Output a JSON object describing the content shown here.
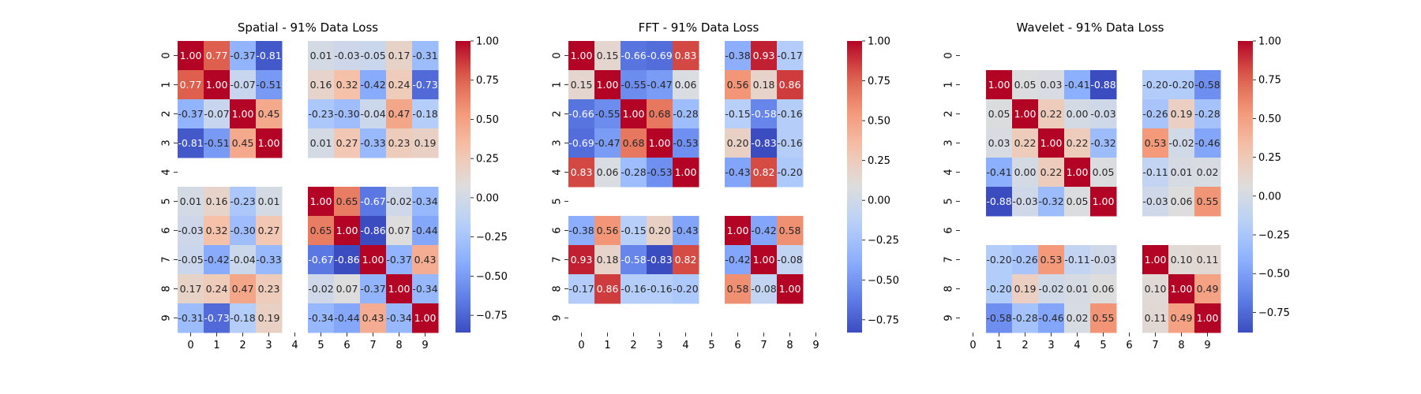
{
  "chart_data": [
    {
      "type": "heatmap",
      "title": "Spatial - 91% Data Loss",
      "x_ticks": [
        "0",
        "1",
        "2",
        "3",
        "4",
        "5",
        "6",
        "7",
        "8",
        "9"
      ],
      "y_ticks": [
        "0",
        "1",
        "2",
        "3",
        "4",
        "5",
        "6",
        "7",
        "8",
        "9"
      ],
      "colorbar": {
        "ticks": [
          1.0,
          0.75,
          0.5,
          0.25,
          0.0,
          -0.25,
          -0.5,
          -0.75
        ],
        "tick_labels": [
          "1.00",
          "0.75",
          "0.50",
          "0.25",
          "0.00",
          "−0.25",
          "−0.50",
          "−0.75"
        ],
        "range": [
          -0.86,
          1.0
        ]
      },
      "colormap": "coolwarm",
      "matrix": [
        [
          1.0,
          0.77,
          -0.37,
          -0.81,
          null,
          0.01,
          -0.03,
          -0.05,
          0.17,
          -0.31
        ],
        [
          0.77,
          1.0,
          -0.07,
          -0.51,
          null,
          0.16,
          0.32,
          -0.42,
          0.24,
          -0.73
        ],
        [
          -0.37,
          -0.07,
          1.0,
          0.45,
          null,
          -0.23,
          -0.3,
          -0.04,
          0.47,
          -0.18
        ],
        [
          -0.81,
          -0.51,
          0.45,
          1.0,
          null,
          0.01,
          0.27,
          -0.33,
          0.23,
          0.19
        ],
        [
          null,
          null,
          null,
          null,
          null,
          null,
          null,
          null,
          null,
          null
        ],
        [
          0.01,
          0.16,
          -0.23,
          0.01,
          null,
          1.0,
          0.65,
          -0.67,
          -0.02,
          -0.34
        ],
        [
          -0.03,
          0.32,
          -0.3,
          0.27,
          null,
          0.65,
          1.0,
          -0.86,
          0.07,
          -0.44
        ],
        [
          -0.05,
          -0.42,
          -0.04,
          -0.33,
          null,
          -0.67,
          -0.86,
          1.0,
          -0.37,
          0.43
        ],
        [
          0.17,
          0.24,
          0.47,
          0.23,
          null,
          -0.02,
          0.07,
          -0.37,
          1.0,
          -0.34
        ],
        [
          -0.31,
          -0.73,
          -0.18,
          0.19,
          null,
          -0.34,
          -0.44,
          0.43,
          -0.34,
          1.0
        ]
      ]
    },
    {
      "type": "heatmap",
      "title": "FFT - 91% Data Loss",
      "x_ticks": [
        "0",
        "1",
        "2",
        "3",
        "4",
        "5",
        "6",
        "7",
        "8",
        "9"
      ],
      "y_ticks": [
        "0",
        "1",
        "2",
        "3",
        "4",
        "5",
        "6",
        "7",
        "8",
        "9"
      ],
      "colorbar": {
        "ticks": [
          1.0,
          0.75,
          0.5,
          0.25,
          0.0,
          -0.25,
          -0.5,
          -0.75
        ],
        "tick_labels": [
          "1.00",
          "0.75",
          "0.50",
          "0.25",
          "0.00",
          "−0.25",
          "−0.50",
          "−0.75"
        ],
        "range": [
          -0.83,
          1.0
        ]
      },
      "colormap": "coolwarm",
      "matrix": [
        [
          1.0,
          0.15,
          -0.66,
          -0.69,
          0.83,
          null,
          -0.38,
          0.93,
          -0.17,
          null
        ],
        [
          0.15,
          1.0,
          -0.55,
          -0.47,
          0.06,
          null,
          0.56,
          0.18,
          0.86,
          null
        ],
        [
          -0.66,
          -0.55,
          1.0,
          0.68,
          -0.28,
          null,
          -0.15,
          -0.58,
          -0.16,
          null
        ],
        [
          -0.69,
          -0.47,
          0.68,
          1.0,
          -0.53,
          null,
          0.2,
          -0.83,
          -0.16,
          null
        ],
        [
          0.83,
          0.06,
          -0.28,
          -0.53,
          1.0,
          null,
          -0.43,
          0.82,
          -0.2,
          null
        ],
        [
          null,
          null,
          null,
          null,
          null,
          null,
          null,
          null,
          null,
          null
        ],
        [
          -0.38,
          0.56,
          -0.15,
          0.2,
          -0.43,
          null,
          1.0,
          -0.42,
          0.58,
          null
        ],
        [
          0.93,
          0.18,
          -0.58,
          -0.83,
          0.82,
          null,
          -0.42,
          1.0,
          -0.08,
          null
        ],
        [
          -0.17,
          0.86,
          -0.16,
          -0.16,
          -0.2,
          null,
          0.58,
          -0.08,
          1.0,
          null
        ],
        [
          null,
          null,
          null,
          null,
          null,
          null,
          null,
          null,
          null,
          null
        ]
      ]
    },
    {
      "type": "heatmap",
      "title": "Wavelet - 91% Data Loss",
      "x_ticks": [
        "0",
        "1",
        "2",
        "3",
        "4",
        "5",
        "6",
        "7",
        "8",
        "9"
      ],
      "y_ticks": [
        "0",
        "1",
        "2",
        "3",
        "4",
        "5",
        "6",
        "7",
        "8",
        "9"
      ],
      "colorbar": {
        "ticks": [
          1.0,
          0.75,
          0.5,
          0.25,
          0.0,
          -0.25,
          -0.5,
          -0.75
        ],
        "tick_labels": [
          "1.00",
          "0.75",
          "0.50",
          "0.25",
          "0.00",
          "−0.25",
          "−0.50",
          "−0.75"
        ],
        "range": [
          -0.88,
          1.0
        ]
      },
      "colormap": "coolwarm",
      "matrix": [
        [
          null,
          null,
          null,
          null,
          null,
          null,
          null,
          null,
          null,
          null
        ],
        [
          null,
          1.0,
          0.05,
          0.03,
          -0.41,
          -0.88,
          null,
          -0.2,
          -0.2,
          -0.58
        ],
        [
          null,
          0.05,
          1.0,
          0.22,
          0.0,
          -0.03,
          null,
          -0.26,
          0.19,
          -0.28
        ],
        [
          null,
          0.03,
          0.22,
          1.0,
          0.22,
          -0.32,
          null,
          0.53,
          -0.02,
          -0.46
        ],
        [
          null,
          -0.41,
          0.0,
          0.22,
          1.0,
          0.05,
          null,
          -0.11,
          0.01,
          0.02
        ],
        [
          null,
          -0.88,
          -0.03,
          -0.32,
          0.05,
          1.0,
          null,
          -0.03,
          0.06,
          0.55
        ],
        [
          null,
          null,
          null,
          null,
          null,
          null,
          null,
          null,
          null,
          null
        ],
        [
          null,
          -0.2,
          -0.26,
          0.53,
          -0.11,
          -0.03,
          null,
          1.0,
          0.1,
          0.11
        ],
        [
          null,
          -0.2,
          0.19,
          -0.02,
          0.01,
          0.06,
          null,
          0.1,
          1.0,
          0.49
        ],
        [
          null,
          -0.58,
          -0.28,
          -0.46,
          0.02,
          0.55,
          null,
          0.11,
          0.49,
          1.0
        ]
      ]
    }
  ]
}
